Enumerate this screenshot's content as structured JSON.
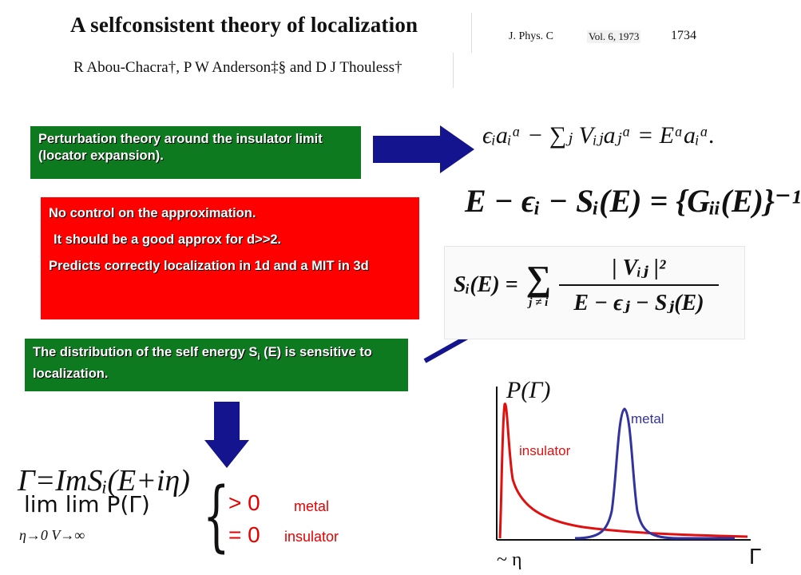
{
  "paper": {
    "title": "A selfconsistent theory of localization",
    "authors": "R Abou-Chacra†, P W Anderson‡§ and D J Thouless†",
    "journal": "J. Phys. C",
    "volume": "Vol. 6, 1973",
    "page": "1734"
  },
  "boxes": {
    "perturbation": "Perturbation theory around the insulator limit (locator expansion).",
    "nocontrol_1": "No control on the approximation.",
    "nocontrol_2": "It should be a good approx for d>>2.",
    "nocontrol_3": "Predicts correctly localization in 1d and a MIT in 3d",
    "distribution_pre": "The distribution of the self energy S",
    "distribution_sub": "i",
    "distribution_post": " (E) is sensitive to localization."
  },
  "equations": {
    "eq1": "ϵᵢaᵢᵅ − ∑ⱼ Vᵢⱼaⱼᵅ = Eᵅaᵢᵅ.",
    "eq2_lhs": "E − ϵᵢ − Sᵢ(E) = ",
    "eq2_rhs": "{Gᵢᵢ(E)}⁻¹",
    "eq3_lhs": "Sᵢ(E) = ",
    "eq3_sum": "∑",
    "eq3_sum_index": "j ≠ i",
    "eq3_num": "| Vᵢⱼ |²",
    "eq3_den": "E − ϵⱼ − Sⱼ(E)",
    "gamma_def": "Γ=ImSᵢ(E+iη)",
    "lim_expr": "lim   lim  P(Γ)",
    "lim_sub": "η→0  V→∞",
    "gt_zero": "> 0",
    "eq_zero": "= 0",
    "metal": "metal",
    "insulator": "insulator"
  },
  "chart_data": {
    "type": "line",
    "ylabel": "P(Γ)",
    "xlabel": "Γ",
    "x_annotation": "~ η",
    "series": [
      {
        "name": "insulator",
        "color": "#e01010",
        "shape": "sharp peak near Γ ≈ η with long decaying tail"
      },
      {
        "name": "metal",
        "color": "#3333a0",
        "shape": "peak centered at finite Γ"
      }
    ]
  },
  "colors": {
    "green_box": "#0d7a1f",
    "red_box": "#ff0000",
    "arrow": "#14148f"
  }
}
